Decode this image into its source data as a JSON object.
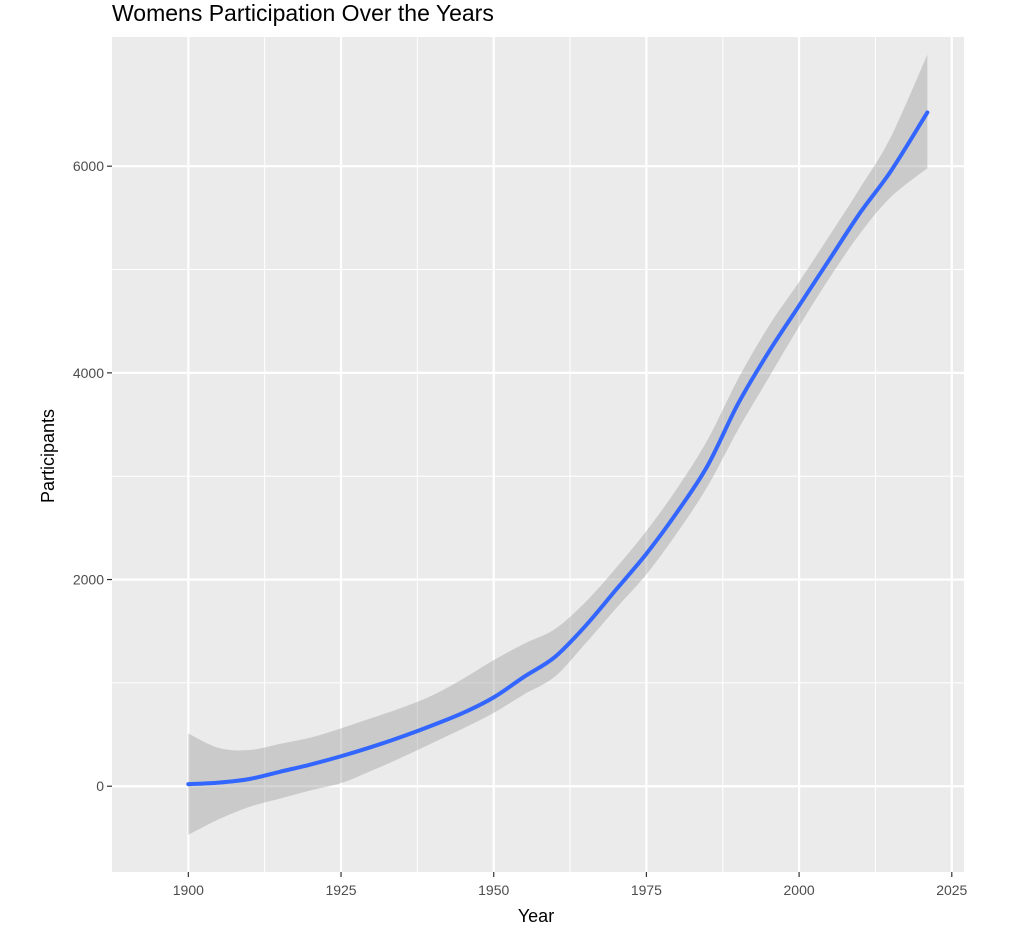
{
  "chart_data": {
    "type": "line",
    "title": "Womens Participation Over the Years",
    "xlabel": "Year",
    "ylabel": "Participants",
    "xlim": [
      1887.5,
      2027
    ],
    "ylim": [
      -830,
      7250
    ],
    "x_ticks": [
      1900,
      1925,
      1950,
      1975,
      2000,
      2025
    ],
    "y_ticks": [
      0,
      2000,
      4000,
      6000
    ],
    "grid": true,
    "legend": "none",
    "series": [
      {
        "x": [
          1900,
          1905,
          1910,
          1915,
          1920,
          1925,
          1930,
          1935,
          1940,
          1945,
          1950,
          1955,
          1960,
          1965,
          1970,
          1975,
          1980,
          1985,
          1990,
          1995,
          2000,
          2005,
          2010,
          2015,
          2021
        ],
        "y": [
          20,
          35,
          70,
          140,
          210,
          290,
          380,
          480,
          590,
          710,
          860,
          1060,
          1250,
          1550,
          1900,
          2250,
          2650,
          3100,
          3700,
          4200,
          4650,
          5100,
          5550,
          5950,
          6520
        ],
        "ci_low": [
          -470,
          -320,
          -200,
          -120,
          -40,
          30,
          150,
          280,
          420,
          560,
          710,
          890,
          1060,
          1380,
          1720,
          2050,
          2450,
          2900,
          3450,
          3950,
          4450,
          4920,
          5350,
          5700,
          5980
        ],
        "ci_high": [
          510,
          370,
          350,
          410,
          470,
          560,
          660,
          760,
          880,
          1040,
          1220,
          1380,
          1520,
          1780,
          2110,
          2470,
          2880,
          3350,
          3940,
          4450,
          4880,
          5330,
          5790,
          6280,
          7080
        ]
      }
    ],
    "colors": {
      "line": "#3366FF",
      "ribbon": "#999999",
      "panel": "#EBEBEB",
      "grid": "#FFFFFF"
    }
  }
}
